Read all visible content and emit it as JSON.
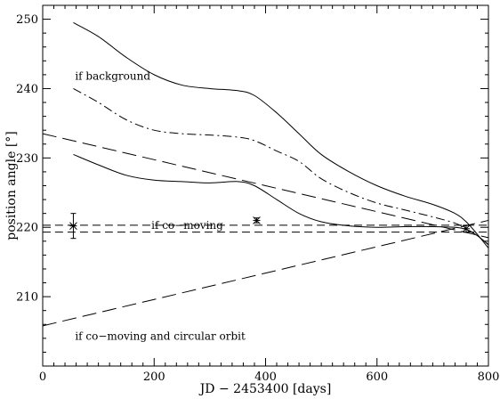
{
  "chart_data": {
    "type": "line",
    "xlabel": "JD − 2453400 [days]",
    "ylabel": "position angle [°]",
    "xlim": [
      0,
      800
    ],
    "ylim": [
      200,
      252
    ],
    "xticks": [
      0,
      200,
      400,
      600,
      800
    ],
    "yticks": [
      210,
      220,
      230,
      240,
      250
    ],
    "grid": false,
    "series": [
      {
        "style": "solid",
        "x": [
          55,
          100,
          150,
          200,
          250,
          300,
          350,
          380,
          420,
          460,
          500,
          550,
          600,
          650,
          700,
          740,
          760,
          780,
          800
        ],
        "y": [
          249.5,
          247.5,
          244.5,
          242.0,
          240.5,
          240.0,
          239.7,
          239.0,
          236.5,
          233.5,
          230.5,
          228.0,
          226.0,
          224.5,
          223.3,
          222.0,
          220.8,
          219.0,
          217.0
        ]
      },
      {
        "style": "dash-dot",
        "x": [
          55,
          100,
          150,
          200,
          250,
          300,
          350,
          380,
          420,
          460,
          500,
          550,
          600,
          650,
          700,
          740,
          760,
          780,
          800
        ],
        "y": [
          240.0,
          238.0,
          235.5,
          234.0,
          233.5,
          233.3,
          233.0,
          232.5,
          231.0,
          229.5,
          227.0,
          225.0,
          223.5,
          222.5,
          221.5,
          220.6,
          219.8,
          218.8,
          217.5
        ]
      },
      {
        "style": "long-dash",
        "x": [
          0,
          800
        ],
        "y": [
          233.5,
          218.5
        ]
      },
      {
        "style": "solid",
        "x": [
          55,
          100,
          150,
          200,
          250,
          300,
          350,
          380,
          420,
          460,
          500,
          550,
          600,
          650,
          700,
          740,
          760,
          780,
          800
        ],
        "y": [
          230.5,
          229.0,
          227.5,
          226.8,
          226.6,
          226.4,
          226.6,
          226.0,
          224.0,
          222.0,
          220.8,
          220.2,
          220.0,
          220.1,
          220.1,
          220.0,
          219.7,
          218.8,
          217.5
        ]
      },
      {
        "style": "long-dash",
        "x": [
          0,
          800
        ],
        "y": [
          205.8,
          221.0
        ]
      },
      {
        "style": "dashed",
        "x": [
          0,
          800
        ],
        "y": [
          220.3,
          220.3
        ]
      },
      {
        "style": "dashed",
        "x": [
          0,
          800
        ],
        "y": [
          219.3,
          219.3
        ]
      }
    ],
    "points": [
      {
        "x": 55,
        "y": 220.2,
        "yerr": 1.8
      },
      {
        "x": 384,
        "y": 221.0,
        "yerr": 0.35
      },
      {
        "x": 760,
        "y": 219.8,
        "yerr": 0.5
      }
    ],
    "annotations": [
      {
        "text": "if background",
        "x": 58,
        "y": 241.3
      },
      {
        "text": "if co−moving",
        "x": 195,
        "y": 219.8
      },
      {
        "text": "if co−moving and circular orbit",
        "x": 58,
        "y": 203.8
      }
    ]
  }
}
